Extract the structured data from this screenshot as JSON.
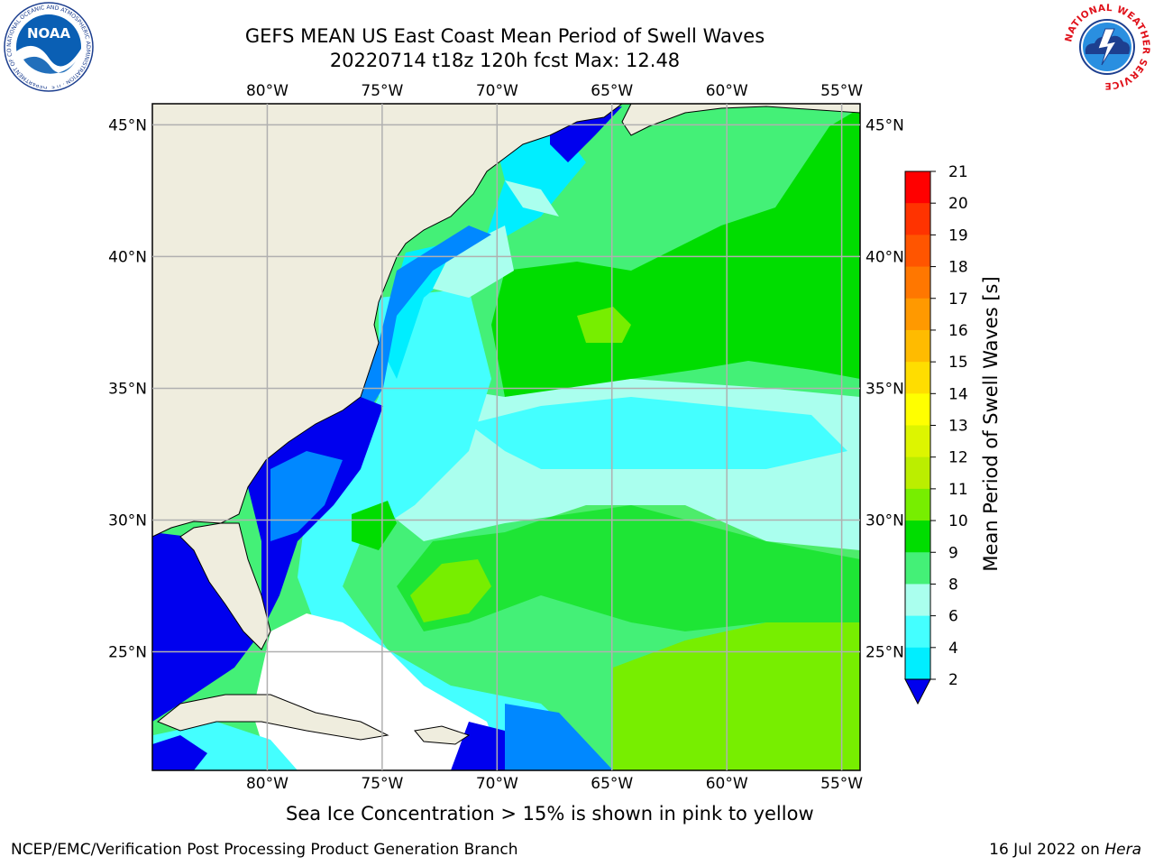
{
  "title_line1": "GEFS MEAN US East Coast Mean Period of Swell Waves",
  "title_line2": "20220714 t18z 120h fcst   Max: 12.48",
  "footnote": "Sea Ice Concentration > 15% is shown in pink to yellow",
  "credit_left": "NCEP/EMC/Verification Post Processing Product Generation Branch",
  "credit_right_date": "16 Jul 2022 on ",
  "credit_right_machine": "Hera",
  "logos": {
    "noaa_text": "NOAA",
    "noaa_ring": "NATIONAL OCEANIC AND ATMOSPHERIC ADMINISTRATION · U.S. DEPARTMENT OF COMMERCE",
    "nws_ring": "NATIONAL WEATHER SERVICE"
  },
  "map": {
    "lon_labels": [
      "80°W",
      "75°W",
      "70°W",
      "65°W",
      "60°W",
      "55°W"
    ],
    "lat_labels": [
      "45°N",
      "40°N",
      "35°N",
      "30°N",
      "25°N"
    ],
    "lon_values": [
      -80,
      -75,
      -70,
      -65,
      -60,
      -55
    ],
    "lat_values": [
      45,
      40,
      35,
      30,
      25
    ],
    "extent": {
      "lon_min": -85,
      "lon_max": -54.2,
      "lat_min": 20.5,
      "lat_max": 45.8
    },
    "colors": {
      "land": "#efedde",
      "grid": "#b0b0b0",
      "coast": "#000000"
    }
  },
  "colorbar": {
    "label": "Mean Period of Swell Waves [s]",
    "ticks": [
      "21",
      "20",
      "19",
      "18",
      "17",
      "16",
      "15",
      "14",
      "13",
      "12",
      "11",
      "10",
      "9",
      "8",
      "6",
      "4",
      "2"
    ],
    "tick_values": [
      21,
      20,
      19,
      18,
      17,
      16,
      15,
      14,
      13,
      12,
      11,
      10,
      9,
      8,
      6,
      4,
      2
    ],
    "colors_top_to_bottom": [
      "#ff0000",
      "#ff3300",
      "#ff5500",
      "#ff7700",
      "#ff9900",
      "#ffbb00",
      "#ffdd00",
      "#ffff00",
      "#ddf500",
      "#bbee00",
      "#77ee00",
      "#00dd00",
      "#44f077",
      "#aaffee",
      "#44ffff",
      "#00eeff",
      "#0088ff"
    ],
    "under_color": "#0000ee"
  }
}
